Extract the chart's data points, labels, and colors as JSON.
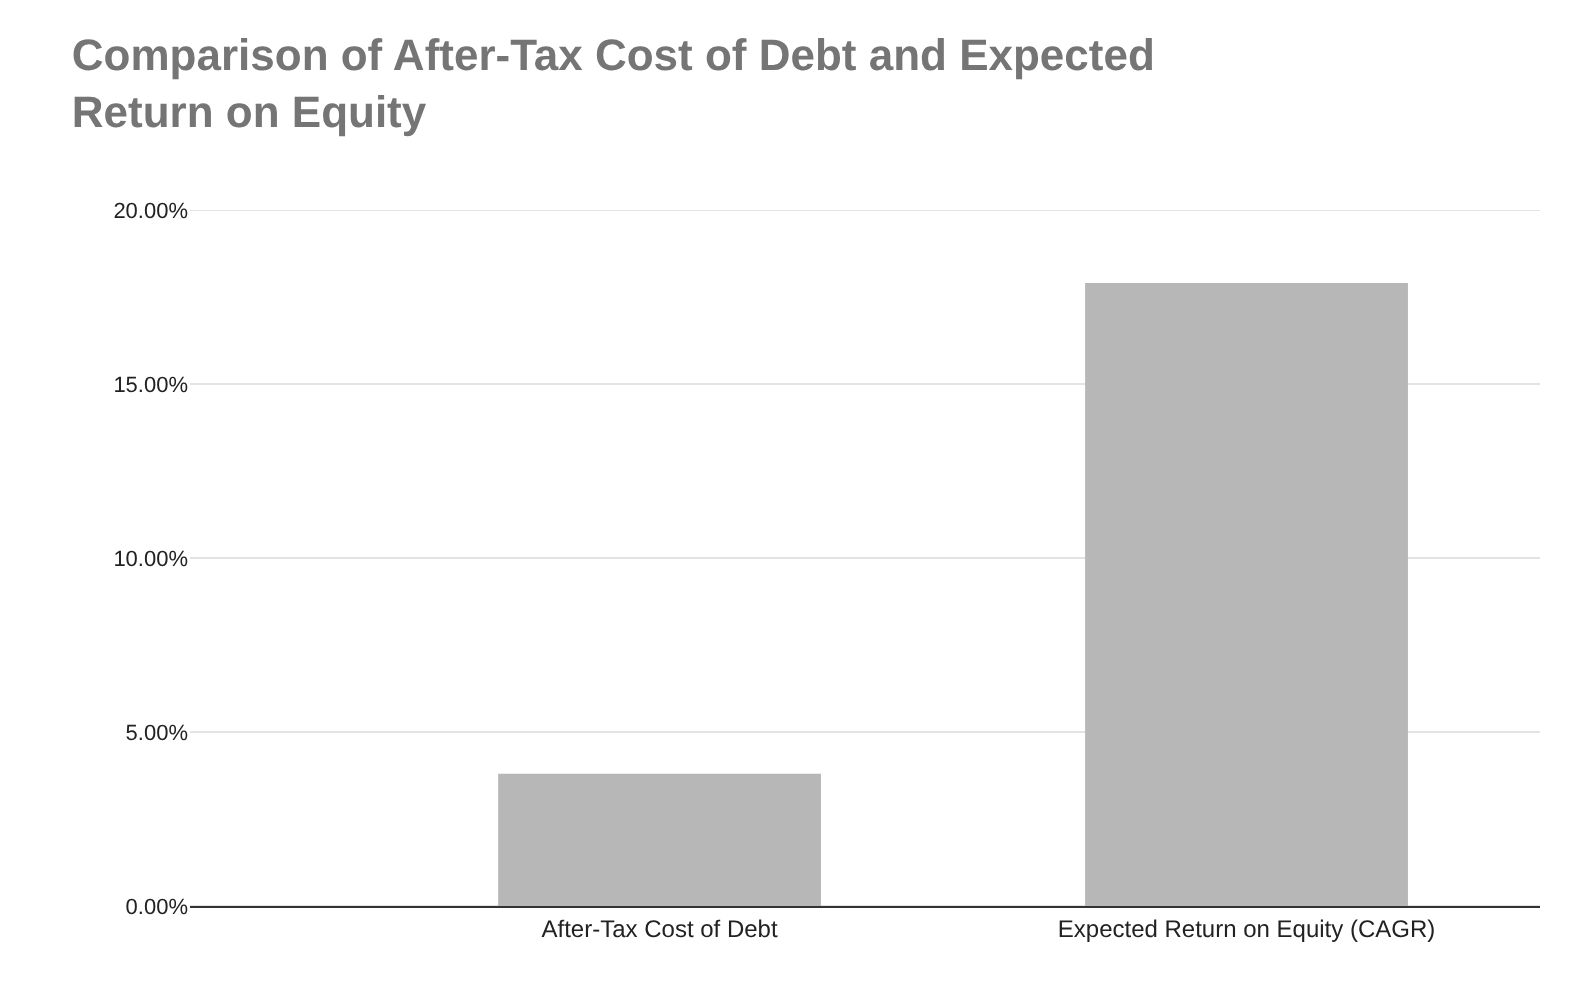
{
  "chart_data": {
    "type": "bar",
    "title": "Comparison of After-Tax Cost of Debt and Expected\nReturn on Equity",
    "categories": [
      "After-Tax Cost of Debt",
      "Expected Return on Equity (CAGR)"
    ],
    "values": [
      3.8,
      17.9
    ],
    "color": "#b7b7b7",
    "ylim": [
      0,
      20
    ],
    "yticks": [
      {
        "value": 0,
        "label": "0.00%"
      },
      {
        "value": 5,
        "label": "5.00%"
      },
      {
        "value": 10,
        "label": "10.00%"
      },
      {
        "value": 15,
        "label": "15.00%"
      },
      {
        "value": 20,
        "label": "20.00%"
      }
    ],
    "grid": "y"
  }
}
